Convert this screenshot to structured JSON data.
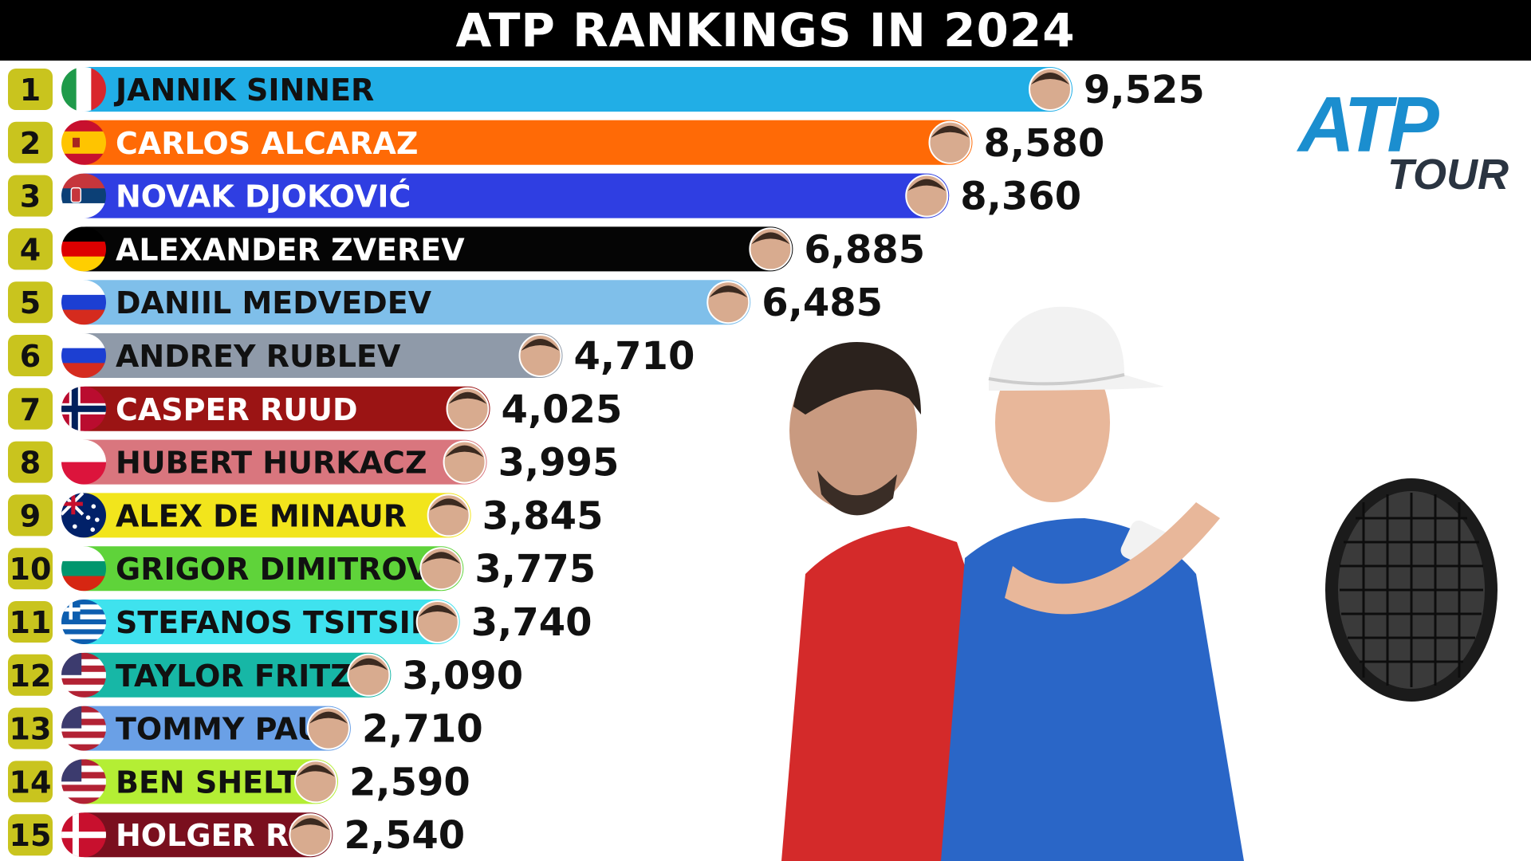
{
  "title": "ATP RANKINGS IN 2024",
  "logo": {
    "line1": "ATP",
    "line2": "TOUR"
  },
  "chart_data": {
    "type": "bar",
    "orientation": "horizontal",
    "title": "ATP RANKINGS IN 2024",
    "xlabel": "",
    "ylabel": "",
    "xlim": [
      0,
      9525
    ],
    "grid": false,
    "legend": "none",
    "categories": [
      "JANNIK SINNER",
      "CARLOS ALCARAZ",
      "NOVAK DJOKOVIĆ",
      "ALEXANDER ZVEREV",
      "DANIIL MEDVEDEV",
      "ANDREY RUBLEV",
      "CASPER RUUD",
      "HUBERT HURKACZ",
      "ALEX DE MINAUR",
      "GRIGOR DIMITROV",
      "STEFANOS TSITSIPAS",
      "TAYLOR FRITZ",
      "TOMMY PAUL",
      "BEN SHELTON",
      "HOLGER RUNE"
    ],
    "ranks": [
      "1",
      "2",
      "3",
      "4",
      "5",
      "6",
      "7",
      "8",
      "9",
      "10",
      "11",
      "12",
      "13",
      "14",
      "15"
    ],
    "values": [
      9525,
      8580,
      8360,
      6885,
      6485,
      4710,
      4025,
      3995,
      3845,
      3775,
      3740,
      3090,
      2710,
      2590,
      2540
    ],
    "value_labels": [
      "9,525",
      "8,580",
      "8,360",
      "6,885",
      "6,485",
      "4,710",
      "4,025",
      "3,995",
      "3,845",
      "3,775",
      "3,740",
      "3,090",
      "2,710",
      "2,590",
      "2,540"
    ],
    "bar_colors": [
      "#21aee6",
      "#ff6a06",
      "#2f3ee2",
      "#050505",
      "#7fbfea",
      "#8f9aa9",
      "#9b1414",
      "#d9767e",
      "#f2e51c",
      "#5fd33a",
      "#3fe2ee",
      "#17b7a6",
      "#6aa0e6",
      "#b4ee34",
      "#7a0f1e"
    ],
    "label_colors": [
      "#111111",
      "#ffffff",
      "#ffffff",
      "#ffffff",
      "#111111",
      "#111111",
      "#ffffff",
      "#111111",
      "#111111",
      "#111111",
      "#111111",
      "#111111",
      "#111111",
      "#111111",
      "#ffffff"
    ],
    "flags": [
      "italy-flag",
      "spain-flag",
      "serbia-flag",
      "germany-flag",
      "russia-flag",
      "russia-flag",
      "norway-flag",
      "poland-flag",
      "australia-flag",
      "bulgaria-flag",
      "greece-flag",
      "usa-flag",
      "usa-flag",
      "usa-flag",
      "denmark-flag"
    ]
  },
  "colors": {
    "rank_badge": "#c9c41e",
    "title_bar": "#000000"
  }
}
